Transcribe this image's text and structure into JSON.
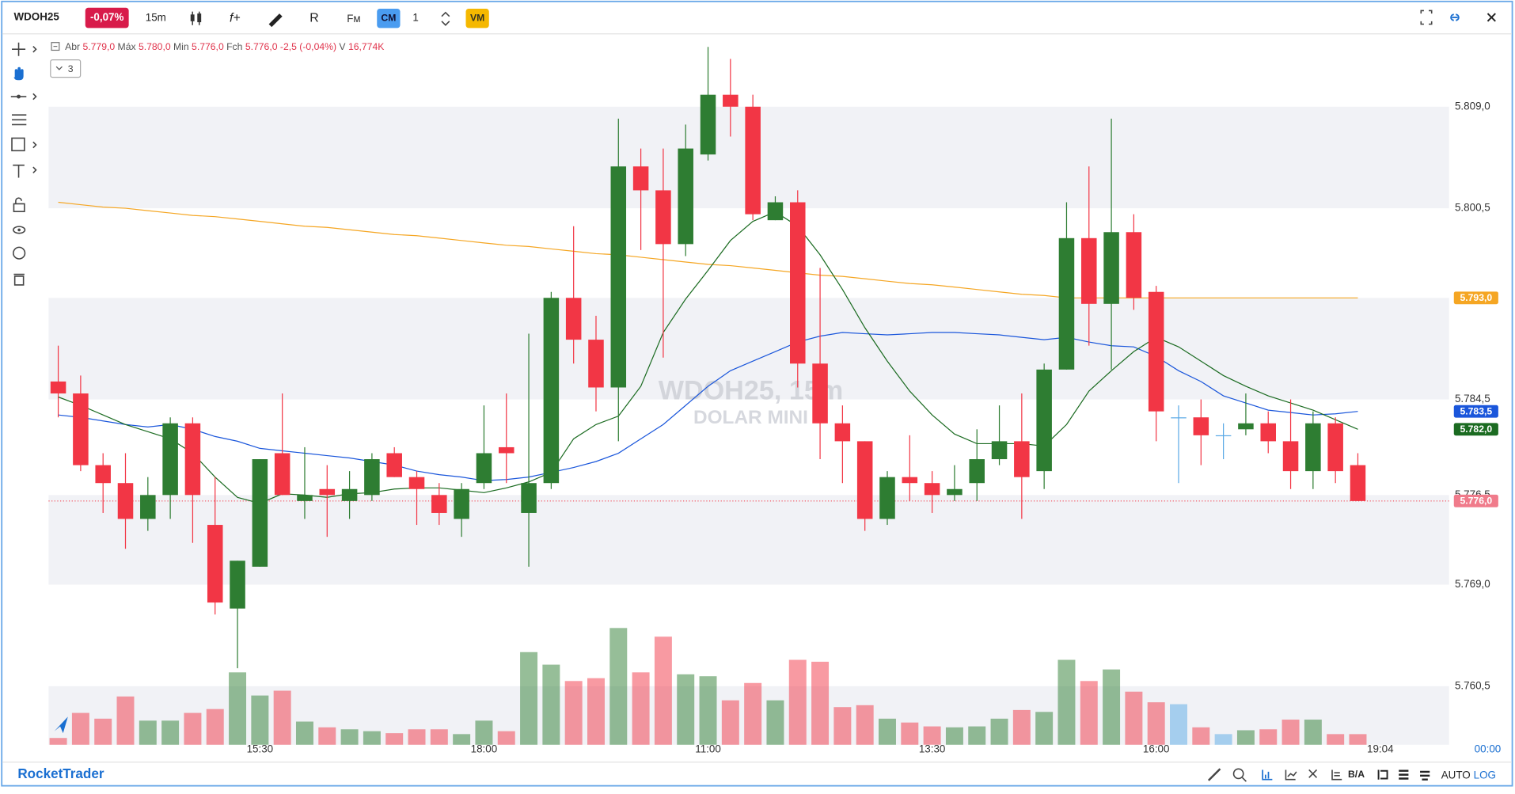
{
  "toolbar": {
    "symbol": "WDOH25",
    "change": "-0,07%",
    "timeframe": "15m",
    "cm": "CM",
    "quantity": "1",
    "vm": "VM"
  },
  "legend": {
    "open_label": "Abr",
    "open": "5.779,0",
    "high_label": "Máx",
    "high": "5.780,0",
    "low_label": "Min",
    "low": "5.776,0",
    "close_label": "Fch",
    "close": "5.776,0",
    "change": "-2,5 (-0,04%)",
    "volume_label": "V",
    "volume": "16,774K",
    "collapsed_count": "3"
  },
  "footer": {
    "brand": "RocketTrader",
    "ba": "B/A",
    "auto": "AUTO",
    "log": "LOG"
  },
  "chart_data": {
    "type": "candlestick",
    "watermark": "WDOH25, 15m",
    "watermark_subtitle": "DOLAR MINI",
    "categories": [
      null,
      null,
      null,
      null,
      null,
      null,
      null,
      null,
      null,
      "15:30",
      null,
      null,
      null,
      null,
      null,
      null,
      null,
      null,
      null,
      "18:00",
      null,
      null,
      null,
      null,
      null,
      null,
      null,
      null,
      null,
      "11:00",
      null,
      null,
      null,
      null,
      null,
      null,
      null,
      null,
      null,
      "13:30",
      null,
      null,
      null,
      null,
      null,
      null,
      null,
      null,
      null,
      "16:00",
      null,
      null,
      null,
      null,
      null,
      null,
      null,
      null,
      null
    ],
    "current_time_label": "19:04",
    "countdown_label": "00:00",
    "open": [
      5786.0,
      5785.0,
      5779.0,
      5777.5,
      5774.5,
      5776.5,
      5782.5,
      5774.0,
      5767.0,
      5770.5,
      5780.0,
      5776.0,
      5777.0,
      5776.0,
      5776.5,
      5780.0,
      5778.0,
      5776.5,
      5774.5,
      5777.5,
      5780.5,
      5775.0,
      5777.5,
      5793.0,
      5789.5,
      5785.5,
      5804.0,
      5802.0,
      5797.5,
      5805.0,
      5810.0,
      5809.0,
      5799.5,
      5801.0,
      5787.5,
      5782.5,
      5781.0,
      5774.5,
      5778.0,
      5777.5,
      5776.5,
      5777.5,
      5779.5,
      5781.0,
      5778.5,
      5787.0,
      5798.0,
      5792.5,
      5798.5,
      5793.5,
      5783.0,
      5783.0,
      5781.5,
      5782.0,
      5782.5,
      5781.0,
      5778.5,
      5782.5,
      5779.0
    ],
    "high": [
      5789.0,
      5786.5,
      5780.0,
      5780.0,
      5778.0,
      5783.0,
      5783.0,
      5778.0,
      5771.0,
      5779.5,
      5785.0,
      5780.5,
      5779.0,
      5778.5,
      5780.0,
      5780.5,
      5778.5,
      5777.5,
      5777.5,
      5784.0,
      5785.0,
      5790.0,
      5793.5,
      5799.0,
      5791.5,
      5808.0,
      5805.5,
      5805.5,
      5807.5,
      5814.0,
      5813.0,
      5810.0,
      5801.5,
      5802.0,
      5795.5,
      5784.0,
      5781.0,
      5778.5,
      5781.5,
      5778.5,
      5779.0,
      5782.0,
      5784.0,
      5785.0,
      5787.5,
      5801.0,
      5804.0,
      5808.0,
      5800.0,
      5794.0,
      5784.0,
      5784.5,
      5782.5,
      5785.0,
      5783.5,
      5784.5,
      5783.5,
      5783.0,
      5780.0
    ],
    "low": [
      5783.0,
      5778.5,
      5775.0,
      5772.0,
      5773.5,
      5774.5,
      5772.5,
      5766.5,
      5762.0,
      5770.5,
      5776.5,
      5774.5,
      5773.0,
      5774.5,
      5776.0,
      5778.0,
      5774.0,
      5774.0,
      5773.0,
      5777.0,
      5777.5,
      5770.5,
      5777.0,
      5787.5,
      5783.5,
      5781.0,
      5797.0,
      5788.0,
      5796.5,
      5804.5,
      5806.5,
      5799.5,
      5799.5,
      5785.5,
      5779.5,
      5777.5,
      5773.5,
      5774.0,
      5776.0,
      5775.0,
      5776.0,
      5776.0,
      5779.0,
      5774.5,
      5777.0,
      5787.0,
      5789.0,
      5787.0,
      5792.0,
      5781.0,
      5777.5,
      5779.0,
      5779.5,
      5781.5,
      5780.0,
      5777.0,
      5777.0,
      5777.5,
      5776.0
    ],
    "close": [
      5785.0,
      5779.0,
      5777.5,
      5774.5,
      5776.5,
      5782.5,
      5776.5,
      5767.5,
      5771.0,
      5779.5,
      5776.5,
      5776.5,
      5776.5,
      5777.0,
      5779.5,
      5778.0,
      5777.0,
      5775.0,
      5777.0,
      5780.0,
      5780.0,
      5777.5,
      5793.0,
      5789.5,
      5785.5,
      5804.0,
      5802.0,
      5797.5,
      5805.5,
      5810.0,
      5809.0,
      5800.0,
      5801.0,
      5787.5,
      5782.5,
      5781.0,
      5774.5,
      5778.0,
      5777.5,
      5776.5,
      5777.0,
      5779.5,
      5781.0,
      5778.0,
      5787.0,
      5798.0,
      5792.5,
      5798.5,
      5793.0,
      5783.5,
      5783.0,
      5781.5,
      5781.5,
      5782.5,
      5781.0,
      5778.5,
      5782.5,
      5778.5,
      5776.0
    ],
    "volume": [
      10700,
      50300,
      41200,
      76300,
      38100,
      38100,
      50300,
      56400,
      114400,
      77800,
      85400,
      36600,
      27500,
      24400,
      21400,
      18300,
      24400,
      24400,
      16800,
      38100,
      21400,
      146400,
      126600,
      100700,
      105200,
      184500,
      114400,
      170800,
      111300,
      108300,
      70200,
      97600,
      70200,
      134200,
      131200,
      59500,
      62500,
      41200,
      35100,
      29000,
      27500,
      29000,
      41200,
      54900,
      51900,
      134200,
      100700,
      119000,
      83900,
      67100,
      64100,
      27500,
      16800,
      22900,
      24400,
      39700,
      39700,
      16800,
      16774
    ],
    "volume_ylim": [
      0,
      200000
    ],
    "up_color": "#2e7d32",
    "down_color": "#f23645",
    "neutral_color": "#5aa9e6",
    "volume_opacity": 0.5,
    "series": [
      {
        "color": "#f5a623",
        "last_label": "5.793,0",
        "values": [
          5801.0,
          5800.8,
          5800.6,
          5800.5,
          5800.3,
          5800.1,
          5799.9,
          5799.8,
          5799.6,
          5799.4,
          5799.2,
          5799.0,
          5798.9,
          5798.7,
          5798.5,
          5798.3,
          5798.2,
          5798.0,
          5797.8,
          5797.6,
          5797.4,
          5797.3,
          5797.1,
          5796.9,
          5796.7,
          5796.6,
          5796.4,
          5796.2,
          5796.0,
          5795.8,
          5795.7,
          5795.5,
          5795.3,
          5795.1,
          5794.9,
          5794.8,
          5794.6,
          5794.4,
          5794.2,
          5794.1,
          5793.9,
          5793.7,
          5793.5,
          5793.3,
          5793.2,
          5793.0,
          5793.0,
          5793.0,
          5793.0,
          5793.0,
          5793.0,
          5793.0,
          5793.0,
          5793.0,
          5793.0,
          5793.0,
          5793.0,
          5793.0,
          5793.0
        ]
      },
      {
        "color": "#1a56db",
        "last_label": "5.783,5",
        "values": [
          5783.2,
          5783.0,
          5782.7,
          5782.4,
          5782.2,
          5782.4,
          5782.0,
          5781.4,
          5781.0,
          5780.4,
          5780.2,
          5780.0,
          5779.8,
          5779.6,
          5779.3,
          5779.0,
          5778.5,
          5778.2,
          5778.0,
          5777.7,
          5777.8,
          5778.0,
          5778.4,
          5778.8,
          5779.3,
          5780.0,
          5781.2,
          5782.4,
          5784.0,
          5785.6,
          5786.9,
          5787.7,
          5788.5,
          5789.3,
          5789.8,
          5790.1,
          5790.0,
          5789.9,
          5790.0,
          5790.1,
          5790.1,
          5790.0,
          5789.9,
          5789.7,
          5789.5,
          5789.7,
          5789.3,
          5789.0,
          5788.9,
          5788.1,
          5786.9,
          5786.0,
          5784.8,
          5784.2,
          5783.6,
          5783.4,
          5783.2,
          5783.3,
          5783.5
        ]
      },
      {
        "color": "#1b6b21",
        "last_label": "5.782,0",
        "values": [
          5784.7,
          5784.0,
          5783.2,
          5782.4,
          5781.8,
          5781.2,
          5780.0,
          5778.0,
          5776.3,
          5775.8,
          5776.6,
          5776.5,
          5776.3,
          5776.6,
          5776.7,
          5777.0,
          5777.1,
          5777.1,
          5776.9,
          5776.7,
          5777.1,
          5777.6,
          5778.4,
          5781.2,
          5782.4,
          5783.1,
          5785.6,
          5790.1,
          5792.9,
          5795.3,
          5797.8,
          5799.4,
          5800.2,
          5799.0,
          5796.6,
          5793.7,
          5790.5,
          5787.7,
          5785.2,
          5783.2,
          5781.6,
          5780.8,
          5780.8,
          5780.8,
          5780.6,
          5782.4,
          5785.2,
          5786.9,
          5788.5,
          5789.7,
          5788.9,
          5787.7,
          5786.5,
          5785.6,
          5784.8,
          5784.2,
          5783.6,
          5782.8,
          5782.0
        ]
      }
    ],
    "last_price": {
      "value": 5776.0,
      "label": "5.776,0"
    },
    "ylim": [
      5755.6,
      5815.1
    ],
    "yticks": [
      {
        "value": 5809.0,
        "label": "5.809,0"
      },
      {
        "value": 5800.5,
        "label": "5.800,5"
      },
      {
        "value": 5793.0,
        "label": "5.793,0"
      },
      {
        "value": 5784.5,
        "label": "5.784,5"
      },
      {
        "value": 5776.5,
        "label": "5.776,5"
      },
      {
        "value": 5769.0,
        "label": "5.769,0"
      },
      {
        "value": 5760.5,
        "label": "5.760,5"
      }
    ],
    "bands": true
  }
}
